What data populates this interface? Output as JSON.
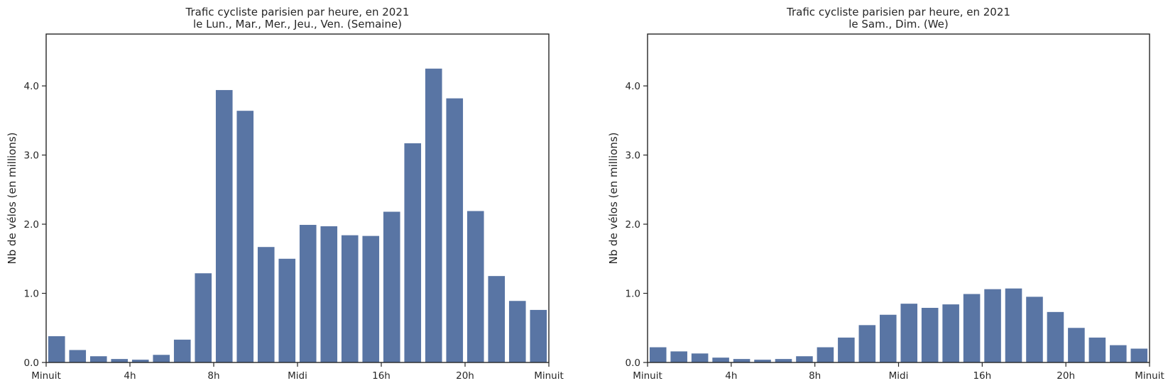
{
  "chart_data": [
    {
      "type": "bar",
      "title": "Trafic cycliste parisien par heure, en 2021",
      "subtitle": "le Lun., Mar., Mer., Jeu., Ven. (Semaine)",
      "xlabel": "",
      "ylabel": "Nb de vélos (en millions)",
      "ylim": [
        0,
        4.75
      ],
      "xlim": [
        0,
        24
      ],
      "yticks": [
        0.0,
        1.0,
        2.0,
        3.0,
        4.0
      ],
      "ytick_labels": [
        "0.0",
        "1.0",
        "2.0",
        "3.0",
        "4.0"
      ],
      "xticks": [
        0,
        4,
        8,
        12,
        16,
        20,
        24
      ],
      "xtick_labels": [
        "Minuit",
        "4h",
        "8h",
        "Midi",
        "16h",
        "20h",
        "Minuit"
      ],
      "grid": false,
      "bar_color": "#5975a4",
      "categories": [
        0,
        1,
        2,
        3,
        4,
        5,
        6,
        7,
        8,
        9,
        10,
        11,
        12,
        13,
        14,
        15,
        16,
        17,
        18,
        19,
        20,
        21,
        22,
        23
      ],
      "values": [
        0.38,
        0.18,
        0.09,
        0.05,
        0.04,
        0.11,
        0.33,
        1.29,
        3.94,
        3.64,
        1.67,
        1.5,
        1.99,
        1.97,
        1.84,
        1.83,
        2.18,
        3.17,
        4.25,
        3.82,
        2.19,
        1.25,
        0.89,
        0.76
      ]
    },
    {
      "type": "bar",
      "title": "Trafic cycliste parisien par heure, en 2021",
      "subtitle": "le Sam., Dim. (We)",
      "xlabel": "",
      "ylabel": "Nb de vélos (en millions)",
      "ylim": [
        0,
        4.75
      ],
      "xlim": [
        0,
        24
      ],
      "yticks": [
        0.0,
        1.0,
        2.0,
        3.0,
        4.0
      ],
      "ytick_labels": [
        "0.0",
        "1.0",
        "2.0",
        "3.0",
        "4.0"
      ],
      "xticks": [
        0,
        4,
        8,
        12,
        16,
        20,
        24
      ],
      "xtick_labels": [
        "Minuit",
        "4h",
        "8h",
        "Midi",
        "16h",
        "20h",
        "Minuit"
      ],
      "grid": false,
      "bar_color": "#5975a4",
      "categories": [
        0,
        1,
        2,
        3,
        4,
        5,
        6,
        7,
        8,
        9,
        10,
        11,
        12,
        13,
        14,
        15,
        16,
        17,
        18,
        19,
        20,
        21,
        22,
        23
      ],
      "values": [
        0.22,
        0.16,
        0.13,
        0.07,
        0.05,
        0.04,
        0.05,
        0.09,
        0.22,
        0.36,
        0.54,
        0.69,
        0.85,
        0.79,
        0.84,
        0.99,
        1.06,
        1.07,
        0.95,
        0.73,
        0.5,
        0.36,
        0.25,
        0.2
      ]
    }
  ]
}
